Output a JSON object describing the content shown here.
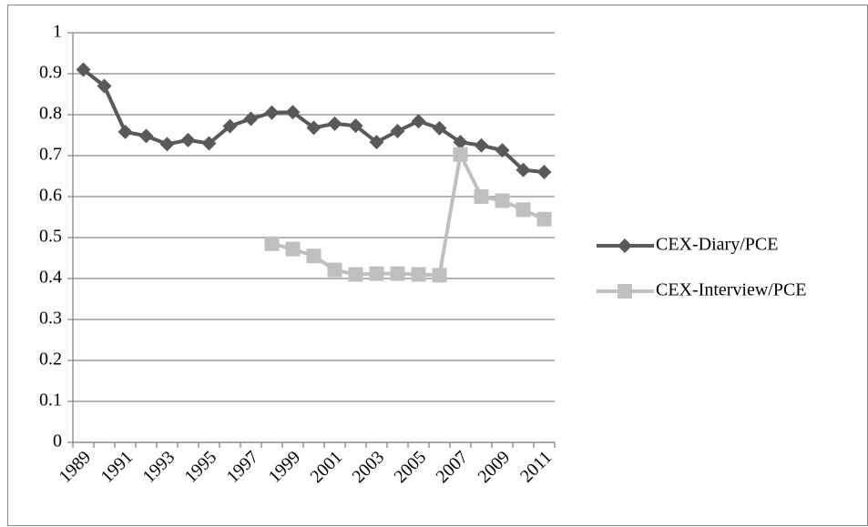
{
  "chart_data": {
    "type": "line",
    "categories": [
      "1989",
      null,
      "1991",
      null,
      "1993",
      null,
      "1995",
      null,
      "1997",
      null,
      "1999",
      null,
      "2001",
      null,
      "2003",
      null,
      "2005",
      null,
      "2007",
      null,
      "2009",
      null,
      "2011"
    ],
    "series": [
      {
        "name": "CEX-Diary/PCE",
        "color": "#595959",
        "marker": "diamond",
        "values": [
          0.91,
          0.87,
          0.758,
          0.748,
          0.728,
          0.738,
          0.73,
          0.772,
          0.79,
          0.805,
          0.806,
          0.768,
          0.778,
          0.773,
          0.733,
          0.76,
          0.784,
          0.767,
          0.733,
          0.725,
          0.713,
          0.665,
          0.66
        ]
      },
      {
        "name": "CEX-Interview/PCE",
        "color": "#bfbfbf",
        "marker": "square",
        "values": [
          null,
          null,
          null,
          null,
          null,
          null,
          null,
          null,
          null,
          0.485,
          0.472,
          0.455,
          0.421,
          0.41,
          0.412,
          0.412,
          0.41,
          0.408,
          0.703,
          0.6,
          0.59,
          0.568,
          0.545
        ]
      }
    ],
    "ylim": [
      0,
      1
    ],
    "yticks": [
      0,
      0.1,
      0.2,
      0.3,
      0.4,
      0.5,
      0.6,
      0.7,
      0.8,
      0.9,
      1
    ],
    "grid": true,
    "legend": "right"
  }
}
